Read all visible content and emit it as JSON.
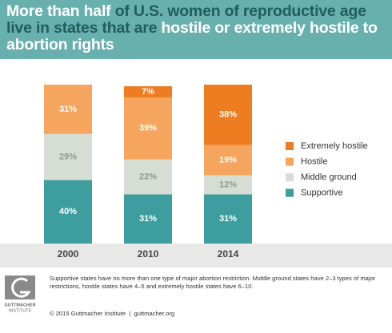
{
  "chart_data": {
    "type": "stacked-bar",
    "title_segments": [
      {
        "text": "More than half",
        "color": "#ffffff"
      },
      {
        "text": "of U.S. women of reproductive age live in states that are",
        "color": "#1e5e62"
      },
      {
        "text": "hostile or extremely hostile to abortion rights",
        "color": "#ffffff"
      }
    ],
    "categories": [
      "2000",
      "2010",
      "2014"
    ],
    "series": [
      {
        "name": "Supportive",
        "color": "#3e9e9f",
        "label_color": "#ffffff",
        "values": [
          40,
          31,
          31
        ],
        "value_labels": [
          "40%",
          "31%",
          "31%"
        ]
      },
      {
        "name": "Middle ground",
        "color": "#d6ddd2",
        "label_color": "#8c9c94",
        "values": [
          29,
          22,
          12
        ],
        "value_labels": [
          "29%",
          "22%",
          "12%"
        ]
      },
      {
        "name": "Hostile",
        "color": "#f6a55e",
        "label_color": "#ffffff",
        "values": [
          31,
          39,
          19
        ],
        "value_labels": [
          "31%",
          "39%",
          "19%"
        ]
      },
      {
        "name": "Extremely hostile",
        "color": "#ee7d22",
        "label_color": "#ffffff",
        "values": [
          null,
          7,
          38
        ],
        "value_labels": [
          null,
          "7%",
          "38%"
        ]
      }
    ],
    "ylim": [
      0,
      100
    ],
    "note": "Supportive states have no more than one type of major abortion restriction. Middle ground states have 2–3 types of major restrictions, hostile states have 4–5 and extremely hostile states have 6–10.",
    "source": "© 2015 Guttmacher Institute  |  guttmacher.org",
    "logo_text": [
      "GUTTMACHER",
      "INSTITUTE"
    ]
  }
}
